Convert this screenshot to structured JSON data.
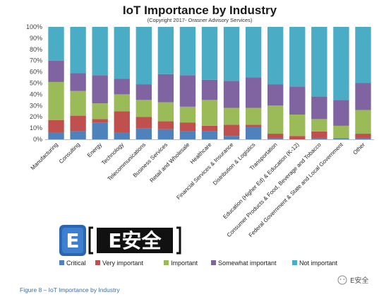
{
  "chart_data": {
    "type": "bar",
    "stacked": true,
    "percent": true,
    "title": "IoT Importance by Industry",
    "subtitle": "(Copyright 2017- Orasner Advisory Services)",
    "ylim": [
      0,
      100
    ],
    "yticks": [
      "0%",
      "10%",
      "20%",
      "30%",
      "40%",
      "50%",
      "60%",
      "70%",
      "80%",
      "90%",
      "100%"
    ],
    "grid": false,
    "legend_position": "bottom",
    "categories": [
      "Manufacturing",
      "Consulting",
      "Energy",
      "Technology",
      "Telecommunications",
      "Business Services",
      "Retail and Wholesale",
      "Healthcare",
      "Financial Services & Insurance",
      "Distribution & Logistics",
      "Transportation",
      "Education (Higher Ed) & Education (K-12)",
      "Consumer Products & Food, Beverage and Tobacco",
      "Federal Government & State and Local Government",
      "Other"
    ],
    "series": [
      {
        "name": "Critical",
        "color": "#4f81bd",
        "values": [
          6,
          7,
          15,
          6,
          10,
          9,
          7,
          7,
          3,
          11,
          1,
          0,
          1,
          1,
          1
        ]
      },
      {
        "name": "Very important",
        "color": "#c0504d",
        "values": [
          11,
          14,
          3,
          19,
          10,
          7,
          8,
          5,
          10,
          2,
          4,
          3,
          6,
          0,
          4
        ]
      },
      {
        "name": "Important",
        "color": "#9bbb59",
        "values": [
          34,
          22,
          14,
          15,
          15,
          17,
          14,
          23,
          15,
          15,
          25,
          19,
          11,
          11,
          21
        ]
      },
      {
        "name": "Somewhat important",
        "color": "#8064a2",
        "values": [
          19,
          16,
          25,
          14,
          14,
          25,
          28,
          18,
          24,
          27,
          19,
          25,
          20,
          23,
          24
        ]
      },
      {
        "name": "Not important",
        "color": "#4bacc6",
        "values": [
          30,
          41,
          43,
          46,
          51,
          42,
          43,
          47,
          48,
          45,
          51,
          53,
          62,
          65,
          50
        ]
      }
    ]
  },
  "watermark": {
    "logo_letter": "E",
    "brand_text": "E安全",
    "footer_brand": "E安全"
  },
  "caption": "Figure 8 – IoT Importance by Industry"
}
